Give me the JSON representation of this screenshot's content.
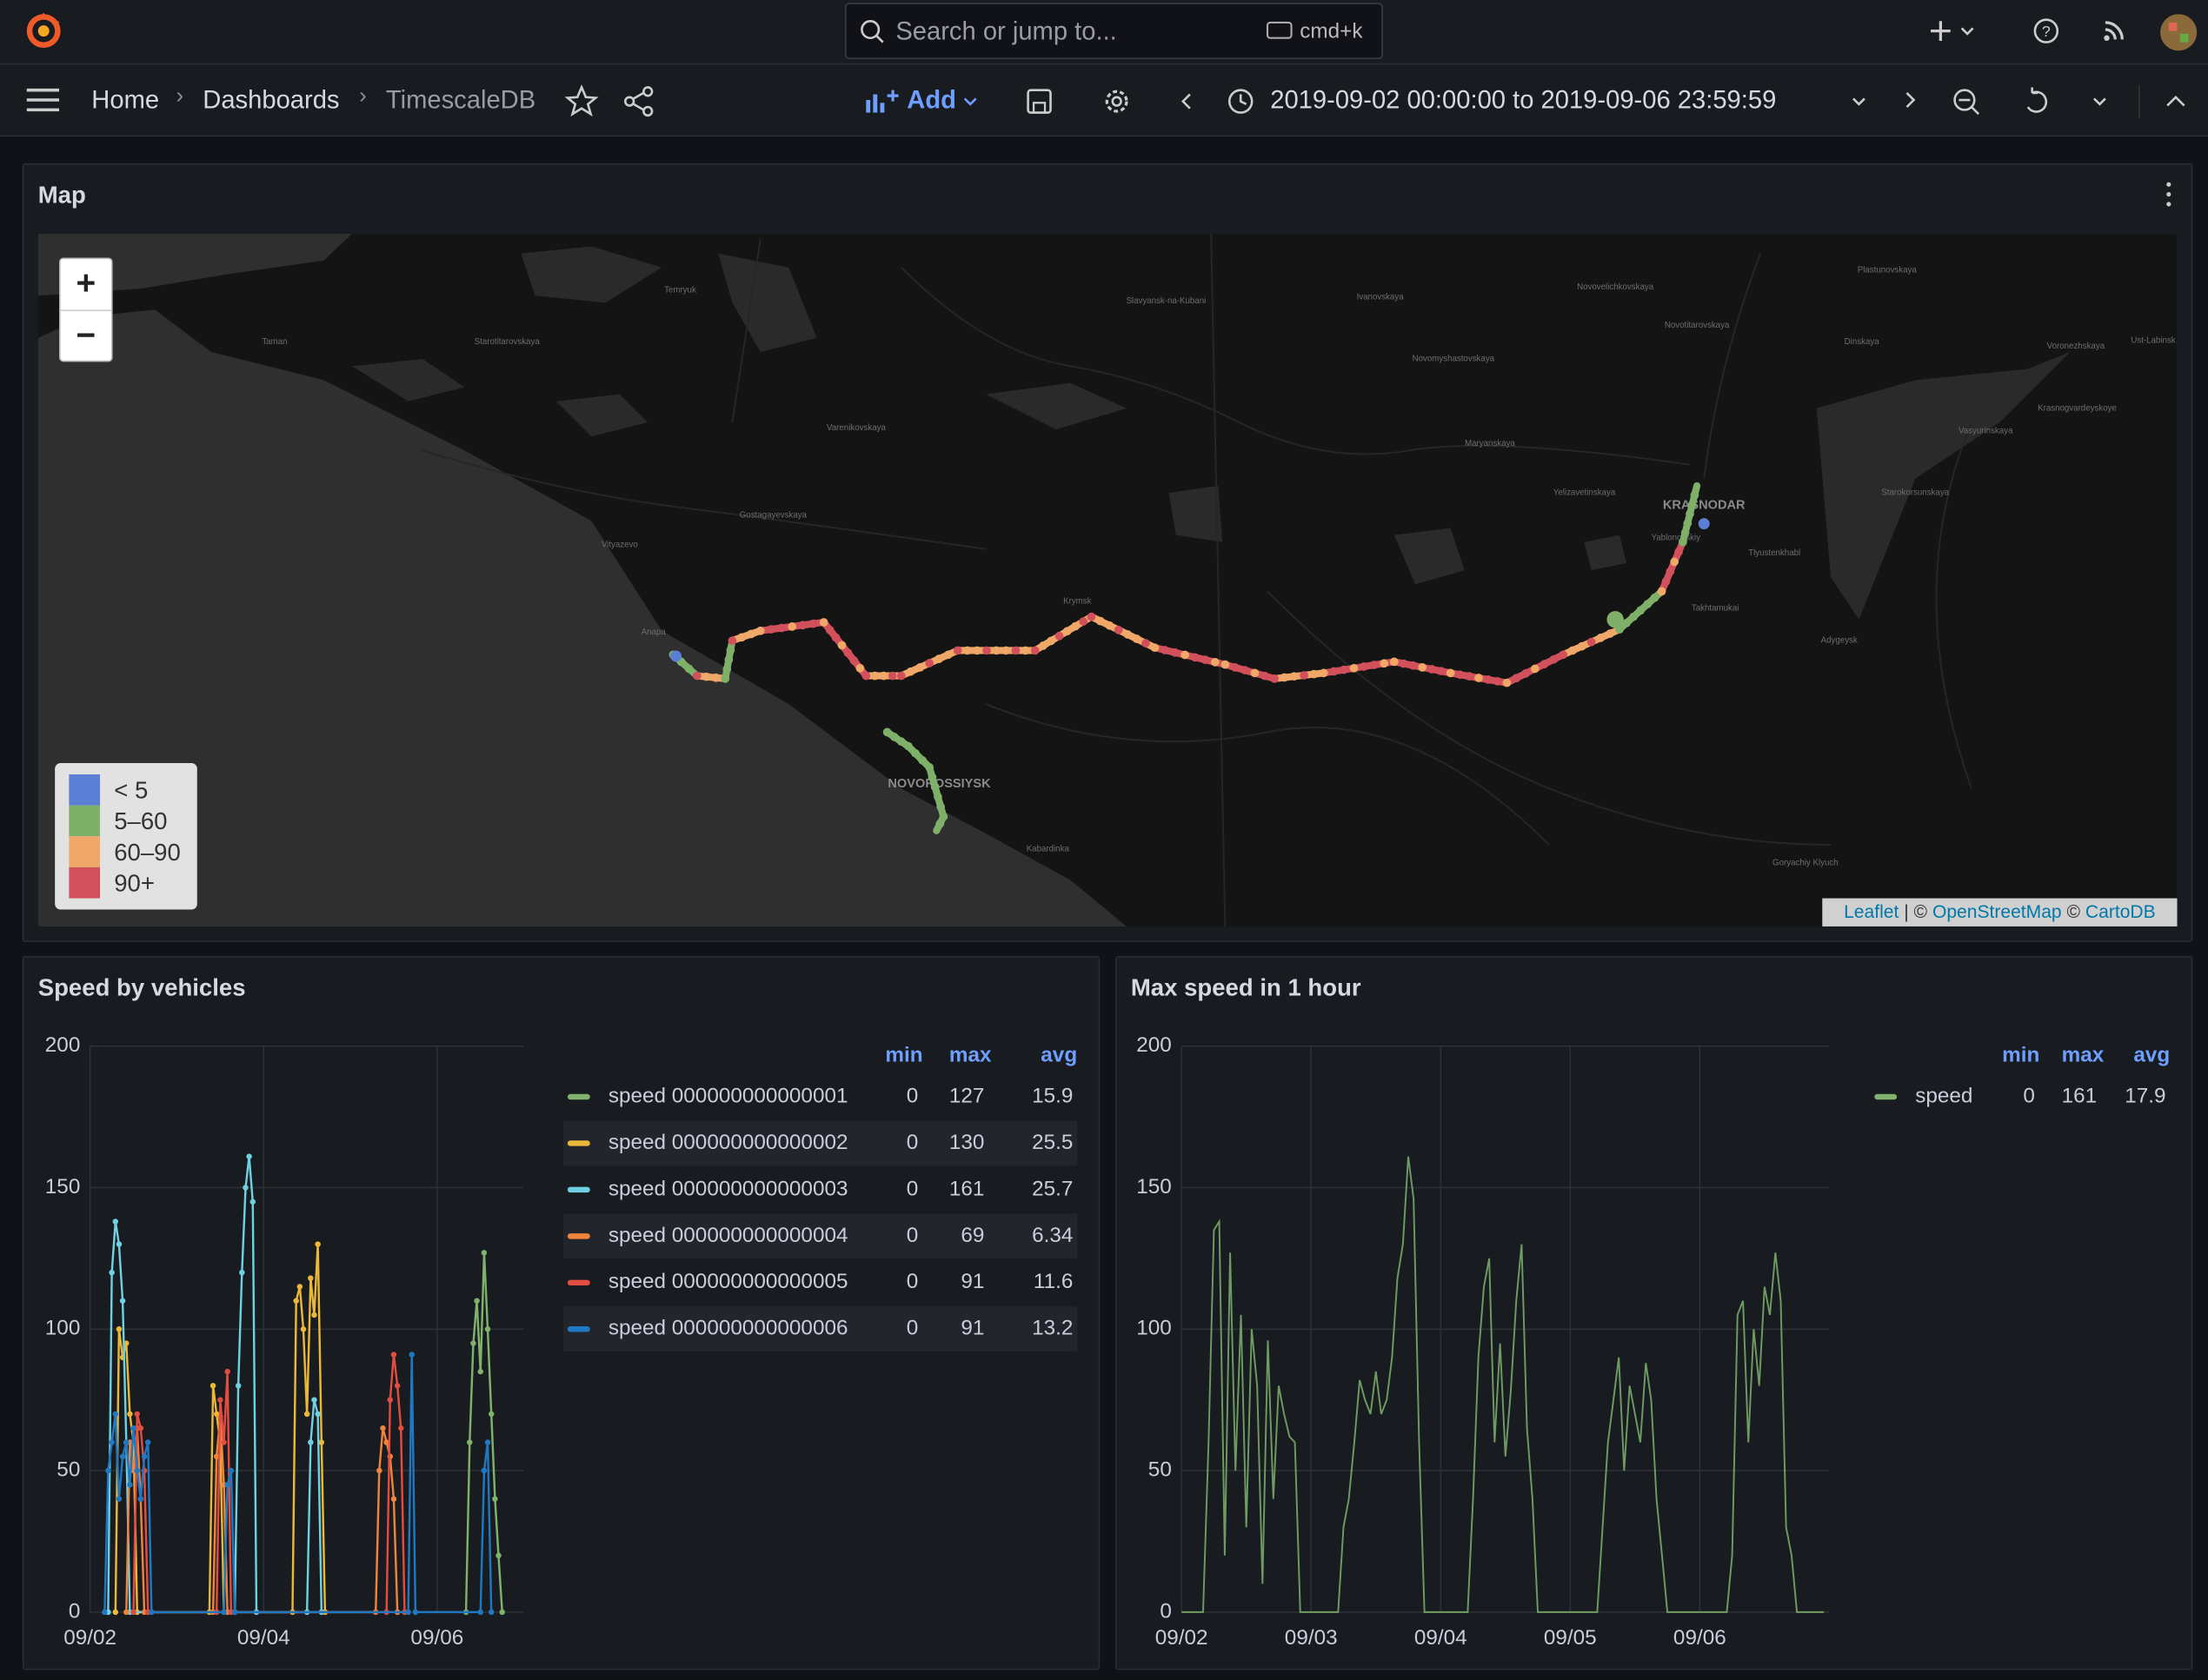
{
  "topbar": {
    "search": "Search or jump to...",
    "shortcut": "cmd+k"
  },
  "breadcrumbs": [
    "Home",
    "Dashboards",
    "TimescaleDB"
  ],
  "toolbar": {
    "add": "Add",
    "time_range": "2019-09-02 00:00:00 to 2019-09-06 23:59:59"
  },
  "map_panel": {
    "title": "Map",
    "zoom_in": "+",
    "zoom_out": "−",
    "legend": [
      {
        "label": "< 5",
        "color": "#5b7fd4"
      },
      {
        "label": "5–60",
        "color": "#7fb069"
      },
      {
        "label": "60–90",
        "color": "#f0a868"
      },
      {
        "label": "90+",
        "color": "#d1505c"
      }
    ],
    "attribution": [
      "Leaflet",
      "| ©",
      "OpenStreetMap",
      "©",
      "CartoDB"
    ],
    "places": [
      "Temryuk",
      "Slavyansk-na-Kubani",
      "Ivanovskaya",
      "Novovelichkovskaya",
      "Plastunovskaya",
      "Novotitarovskaya",
      "Dinskaya",
      "Voronezhskaya",
      "Ust-Labinsk",
      "Taman",
      "Starotitarovskaya",
      "Novomyshastovskaya",
      "Varenikovskaya",
      "Maryanskaya",
      "Gostagayevskaya",
      "Vityazevo",
      "Anapa",
      "Krymsk",
      "Yelizavetinskaya",
      "KRASNODAR",
      "Yablonovskiy",
      "Tlyustenkhabl",
      "Takhtamukai",
      "Starokorsunskaya",
      "Vasyurinskaya",
      "Krasnogvardeyskoye",
      "Adygeysk",
      "NOVOROSSIYSK",
      "Kabardinka",
      "Goryachiy Klyuch"
    ]
  },
  "panels": [
    {
      "title": "Speed by vehicles",
      "chart_data": {
        "type": "line",
        "show_points": true,
        "xlim": [
          0,
          120
        ],
        "xticks": [
          {
            "value": 0,
            "label": "09/02"
          },
          {
            "value": 48,
            "label": "09/04"
          },
          {
            "value": 96,
            "label": "09/06"
          }
        ],
        "ylim": [
          0,
          200
        ],
        "yticks": [
          0,
          50,
          100,
          150,
          200
        ],
        "grid": true,
        "legend_columns": [
          "min",
          "max",
          "avg"
        ],
        "series": [
          {
            "name": "speed 000000000000001",
            "color": "#7eb26d",
            "min": 0,
            "max": 127,
            "avg": 15.9,
            "x": [
              104,
              105,
              106,
              107,
              108,
              109,
              110,
              111,
              112,
              113,
              114
            ],
            "values": [
              0,
              60,
              95,
              110,
              85,
              127,
              100,
              70,
              40,
              20,
              0
            ]
          },
          {
            "name": "speed 000000000000002",
            "color": "#eab839",
            "min": 0,
            "max": 130,
            "avg": 25.5,
            "x": [
              7,
              8,
              9,
              10,
              11,
              12,
              13,
              33,
              34,
              35,
              36,
              37,
              56,
              57,
              58,
              59,
              60,
              61,
              62,
              63,
              64,
              65
            ],
            "values": [
              0,
              100,
              90,
              95,
              70,
              60,
              0,
              0,
              80,
              70,
              60,
              0,
              0,
              110,
              115,
              100,
              70,
              118,
              105,
              130,
              60,
              0
            ]
          },
          {
            "name": "speed 000000000000003",
            "color": "#6ed0e0",
            "min": 0,
            "max": 161,
            "avg": 25.7,
            "x": [
              5,
              6,
              7,
              8,
              9,
              10,
              11,
              40,
              41,
              42,
              43,
              44,
              45,
              46,
              60,
              61,
              62,
              63,
              64
            ],
            "values": [
              0,
              120,
              138,
              130,
              110,
              60,
              0,
              0,
              80,
              120,
              150,
              161,
              145,
              0,
              0,
              60,
              75,
              70,
              0
            ]
          },
          {
            "name": "speed 000000000000004",
            "color": "#ef843c",
            "min": 0,
            "max": 69,
            "avg": 6.34,
            "x": [
              10,
              11,
              12,
              13,
              14,
              15,
              34,
              35,
              36,
              37,
              38,
              79,
              80,
              81,
              82,
              83,
              84,
              85
            ],
            "values": [
              0,
              60,
              50,
              65,
              40,
              0,
              0,
              55,
              69,
              45,
              0,
              0,
              50,
              65,
              60,
              55,
              40,
              0
            ]
          },
          {
            "name": "speed 000000000000005",
            "color": "#e24d42",
            "min": 0,
            "max": 91,
            "avg": 11.6,
            "x": [
              12,
              13,
              14,
              15,
              16,
              35,
              36,
              37,
              38,
              39,
              82,
              83,
              84,
              85,
              86,
              87
            ],
            "values": [
              0,
              70,
              65,
              50,
              0,
              0,
              75,
              60,
              85,
              0,
              0,
              75,
              91,
              80,
              65,
              0
            ]
          },
          {
            "name": "speed 000000000000006",
            "color": "#1f78c1",
            "min": 0,
            "max": 91,
            "avg": 13.2,
            "x": [
              4,
              5,
              6,
              7,
              8,
              9,
              10,
              11,
              12,
              13,
              14,
              15,
              16,
              17,
              37,
              38,
              39,
              40,
              88,
              89,
              90,
              108,
              109,
              110,
              111
            ],
            "values": [
              0,
              50,
              60,
              70,
              40,
              55,
              60,
              45,
              65,
              50,
              40,
              55,
              60,
              0,
              0,
              45,
              50,
              0,
              0,
              91,
              0,
              0,
              50,
              60,
              0
            ]
          }
        ]
      }
    },
    {
      "title": "Max speed in 1 hour",
      "chart_data": {
        "type": "line",
        "show_points": false,
        "xlim": [
          0,
          120
        ],
        "xticks": [
          {
            "value": 0,
            "label": "09/02"
          },
          {
            "value": 24,
            "label": "09/03"
          },
          {
            "value": 48,
            "label": "09/04"
          },
          {
            "value": 72,
            "label": "09/05"
          },
          {
            "value": 96,
            "label": "09/06"
          }
        ],
        "ylim": [
          0,
          200
        ],
        "yticks": [
          0,
          50,
          100,
          150,
          200
        ],
        "grid": true,
        "legend_columns": [
          "min",
          "max",
          "avg"
        ],
        "series": [
          {
            "name": "speed",
            "color": "#7eb26d",
            "min": 0,
            "max": 161,
            "avg": 17.9,
            "x": [
              0,
              1,
              2,
              3,
              4,
              5,
              6,
              7,
              8,
              9,
              10,
              11,
              12,
              13,
              14,
              15,
              16,
              17,
              18,
              19,
              20,
              21,
              22,
              23,
              24,
              25,
              26,
              27,
              28,
              29,
              30,
              31,
              32,
              33,
              34,
              35,
              36,
              37,
              38,
              39,
              40,
              41,
              42,
              43,
              44,
              45,
              46,
              47,
              48,
              49,
              50,
              51,
              52,
              53,
              54,
              55,
              56,
              57,
              58,
              59,
              60,
              61,
              62,
              63,
              64,
              65,
              66,
              67,
              68,
              69,
              70,
              71,
              72,
              73,
              74,
              75,
              76,
              77,
              78,
              79,
              80,
              81,
              82,
              83,
              84,
              85,
              86,
              87,
              88,
              89,
              90,
              91,
              92,
              93,
              94,
              95,
              96,
              97,
              98,
              99,
              100,
              101,
              102,
              103,
              104,
              105,
              106,
              107,
              108,
              109,
              110,
              111,
              112,
              113,
              114,
              115,
              116,
              117,
              118,
              119
            ],
            "values": [
              0,
              0,
              0,
              0,
              0,
              60,
              135,
              138,
              20,
              127,
              50,
              105,
              30,
              100,
              80,
              10,
              96,
              40,
              80,
              70,
              62,
              60,
              0,
              0,
              0,
              0,
              0,
              0,
              0,
              0,
              30,
              40,
              60,
              82,
              75,
              70,
              85,
              70,
              75,
              90,
              118,
              130,
              161,
              146,
              60,
              0,
              0,
              0,
              0,
              0,
              0,
              0,
              0,
              0,
              40,
              90,
              115,
              125,
              60,
              95,
              55,
              78,
              110,
              130,
              65,
              40,
              0,
              0,
              0,
              0,
              0,
              0,
              0,
              0,
              0,
              0,
              0,
              0,
              30,
              60,
              75,
              90,
              50,
              80,
              70,
              60,
              88,
              75,
              40,
              20,
              0,
              0,
              0,
              0,
              0,
              0,
              0,
              0,
              0,
              0,
              0,
              0,
              20,
              105,
              110,
              60,
              100,
              80,
              115,
              105,
              127,
              110,
              30,
              20,
              0,
              0,
              0,
              0,
              0,
              0
            ]
          }
        ]
      }
    }
  ]
}
